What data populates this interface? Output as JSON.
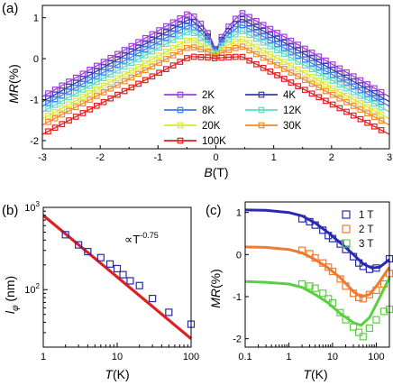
{
  "panels": {
    "a": {
      "label": "(a)"
    },
    "b": {
      "label": "(b)"
    },
    "c": {
      "label": "(c)"
    }
  },
  "chart_data": [
    {
      "id": "a",
      "type": "line",
      "xlabel_main": "B",
      "xlabel_unit": "(T)",
      "ylabel_main": "MR",
      "ylabel_unit": "(%)",
      "xlim": [
        -3,
        3
      ],
      "ylim": [
        -2.2,
        1.3
      ],
      "xticks": [
        -3,
        -2,
        -1,
        0,
        1,
        2,
        3
      ],
      "yticks": [
        -2,
        -1,
        0,
        1
      ],
      "legend_placement": "bottom-center, two columns",
      "series": [
        {
          "name": "2K",
          "color": "#a040e0",
          "peak": 1.12,
          "edge": -0.93
        },
        {
          "name": "4K",
          "color": "#3a3aa8",
          "peak": 0.97,
          "edge": -1.05
        },
        {
          "name": "8K",
          "color": "#3f7fe8",
          "peak": 0.83,
          "edge": -1.16
        },
        {
          "name": "12K",
          "color": "#5fd9c8",
          "peak": 0.68,
          "edge": -1.3
        },
        {
          "name": "20K",
          "color": "#d8e83a",
          "peak": 0.48,
          "edge": -1.47
        },
        {
          "name": "30K",
          "color": "#f08a2a",
          "peak": 0.3,
          "edge": -1.62
        },
        {
          "name": "100K",
          "color": "#e02020",
          "peak": 0.05,
          "edge": -1.85
        }
      ]
    },
    {
      "id": "b",
      "type": "scatter",
      "xlabel_main": "T",
      "xlabel_unit": "(K)",
      "ylabel_main": "l",
      "ylabel_sub": "φ",
      "ylabel_unit": " (nm)",
      "xscale": "log",
      "yscale": "log",
      "xlim": [
        1,
        100
      ],
      "ylim": [
        20,
        1000
      ],
      "xtick_labels": [
        "1",
        "10",
        "100"
      ],
      "ytick_labels": [
        {
          "base": "10",
          "exp": "2"
        },
        {
          "base": "10",
          "exp": "3"
        }
      ],
      "annotation": {
        "prefix": "∝T",
        "exp": "-0.75"
      },
      "fit": {
        "x": [
          1,
          100
        ],
        "y": [
          800,
          25.3
        ],
        "color": "#e02020"
      },
      "points": {
        "color": "#2a2ab0",
        "x": [
          2,
          3,
          4,
          6,
          8,
          10,
          12,
          15,
          20,
          30,
          50,
          100
        ],
        "y": [
          465,
          350,
          290,
          245,
          205,
          180,
          152,
          128,
          112,
          78,
          53,
          38
        ]
      }
    },
    {
      "id": "c",
      "type": "scatter",
      "xlabel_main": "T",
      "xlabel_unit": "(K)",
      "ylabel_main": "MR",
      "ylabel_unit": "(%)",
      "xscale": "log",
      "xlim": [
        0.1,
        200
      ],
      "ylim": [
        -2.2,
        1.25
      ],
      "xtick_labels": [
        "0.1",
        "1",
        "10",
        "100"
      ],
      "yticks": [
        -2,
        -1,
        0,
        1
      ],
      "legend_placement": "top-right",
      "series": [
        {
          "name": "1 T",
          "color": "#2a2ab0",
          "x": [
            2,
            3,
            4,
            6,
            8,
            10,
            15,
            20,
            30,
            40,
            50,
            70,
            100,
            200
          ],
          "y": [
            0.85,
            0.78,
            0.7,
            0.58,
            0.45,
            0.38,
            0.25,
            0.12,
            -0.05,
            -0.2,
            -0.28,
            -0.35,
            -0.32,
            -0.1
          ],
          "fit_x": [
            0.1,
            0.3,
            1,
            2,
            4,
            8,
            15,
            30,
            50,
            80,
            120,
            200
          ],
          "fit_y": [
            1.06,
            1.05,
            1.0,
            0.92,
            0.75,
            0.52,
            0.28,
            0.0,
            -0.22,
            -0.32,
            -0.3,
            -0.12
          ]
        },
        {
          "name": "2 T",
          "color": "#f07a30",
          "x": [
            2,
            3,
            4,
            6,
            8,
            10,
            15,
            20,
            30,
            40,
            50,
            70,
            100,
            150,
            200
          ],
          "y": [
            0.1,
            0.02,
            -0.08,
            -0.2,
            -0.3,
            -0.4,
            -0.58,
            -0.75,
            -0.92,
            -1.02,
            -1.05,
            -0.95,
            -0.85,
            -0.7,
            -0.45
          ],
          "fit_x": [
            0.1,
            0.3,
            1,
            2,
            4,
            8,
            15,
            30,
            45,
            70,
            110,
            200
          ],
          "fit_y": [
            0.18,
            0.17,
            0.12,
            0.04,
            -0.12,
            -0.32,
            -0.55,
            -0.88,
            -1.0,
            -0.95,
            -0.7,
            -0.3
          ]
        },
        {
          "name": "3 T",
          "color": "#5ad040",
          "x": [
            2,
            3,
            4,
            6,
            8,
            10,
            15,
            20,
            30,
            40,
            50,
            70,
            100,
            150,
            200
          ],
          "y": [
            -0.7,
            -0.75,
            -0.8,
            -0.92,
            -1.05,
            -1.15,
            -1.38,
            -1.55,
            -1.72,
            -1.85,
            -1.95,
            -1.75,
            -1.55,
            -1.35,
            -1.3
          ],
          "fit_x": [
            0.1,
            0.3,
            1,
            2,
            4,
            8,
            15,
            30,
            45,
            70,
            110,
            200
          ],
          "fit_y": [
            -0.64,
            -0.66,
            -0.7,
            -0.78,
            -0.95,
            -1.15,
            -1.4,
            -1.62,
            -1.68,
            -1.5,
            -1.1,
            -0.55
          ]
        }
      ]
    }
  ]
}
